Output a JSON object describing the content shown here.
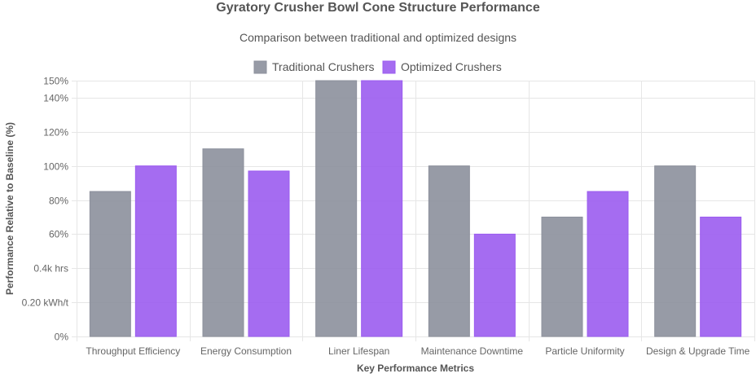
{
  "chart_data": {
    "type": "bar",
    "title": "Gyratory Crusher Bowl Cone Structure Performance",
    "subtitle": "Comparison between traditional and optimized designs",
    "xlabel": "Key Performance Metrics",
    "ylabel": "Performance Relative to Baseline (%)",
    "categories": [
      "Throughput Efficiency",
      "Energy Consumption",
      "Liner Lifespan",
      "Maintenance Downtime",
      "Particle Uniformity",
      "Design & Upgrade Time"
    ],
    "series": [
      {
        "name": "Traditional Crushers",
        "values": [
          85,
          110,
          150,
          100,
          70,
          100
        ],
        "color": "#8c909c"
      },
      {
        "name": "Optimized Crushers",
        "values": [
          100,
          97,
          150,
          60,
          85,
          70
        ],
        "color": "#9b5cf0"
      }
    ],
    "ylim": [
      0,
      150
    ],
    "yticks": [
      {
        "value": 0,
        "label": "0%"
      },
      {
        "value": 20,
        "label": "0.20 kWh/t"
      },
      {
        "value": 40,
        "label": "0.4k hrs"
      },
      {
        "value": 60,
        "label": "60%"
      },
      {
        "value": 80,
        "label": "80%"
      },
      {
        "value": 100,
        "label": "100%"
      },
      {
        "value": 120,
        "label": "120%"
      },
      {
        "value": 140,
        "label": "140%"
      },
      {
        "value": 150,
        "label": "150%"
      }
    ],
    "grid": true,
    "legend_position": "top"
  }
}
